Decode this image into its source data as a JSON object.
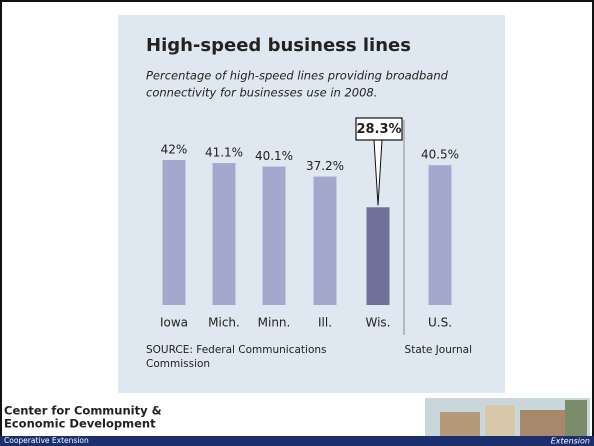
{
  "chart_data": {
    "type": "bar",
    "title": "High-speed business lines",
    "subtitle": [
      "Percentage of high-speed lines providing broadband",
      "connectivity for businesses use in 2008."
    ],
    "categories": [
      "Iowa",
      "Mich.",
      "Minn.",
      "Ill.",
      "Wis.",
      "U.S."
    ],
    "values": [
      42,
      41.1,
      40.1,
      37.2,
      28.3,
      40.5
    ],
    "value_labels": [
      "42%",
      "41.1%",
      "40.1%",
      "37.2%",
      "28.3%",
      "40.5%"
    ],
    "colors": [
      "#a4a8cf",
      "#a4a8cf",
      "#a4a8cf",
      "#a4a8cf",
      "#6e7099",
      "#a4a8cf"
    ],
    "highlight": "Wis.",
    "source": [
      "SOURCE: Federal Communications",
      "Commission"
    ],
    "credit": "State Journal"
  },
  "footer": {
    "org": [
      "Center for Community &",
      "Economic Development"
    ],
    "bar_left": "Cooperative Extension",
    "bar_right": "Extension"
  }
}
